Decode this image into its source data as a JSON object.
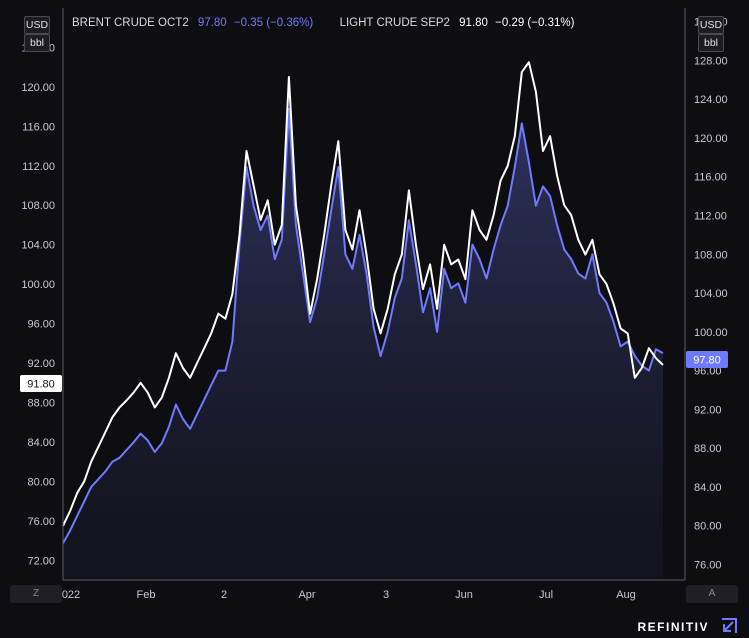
{
  "header": {
    "series1_name": "BRENT CRUDE OCT2",
    "series1_value": "97.80",
    "series1_change": "−0.35 (−0.36%)",
    "series2_name": "LIGHT CRUDE SEP2",
    "series2_value": "91.80",
    "series2_change": "−0.29 (−0.31%)"
  },
  "left_unit": {
    "currency": "USD",
    "unit": "bbl"
  },
  "right_unit": {
    "currency": "USD",
    "unit": "bbl"
  },
  "left_price_tag": "91.80",
  "right_price_tag": "97.80",
  "bottom_left_button": "Z",
  "bottom_right_button": "A",
  "brand": "REFINITIV",
  "colors": {
    "background": "#0e0e12",
    "brent": "#6f7bff",
    "light_crude": "#ffffff",
    "axis_line": "#5a5a66"
  },
  "chart_data": {
    "type": "line",
    "x_ticks": [
      "022",
      "Feb",
      "2",
      "Apr",
      "3",
      "Jun",
      "Jul",
      "Aug"
    ],
    "left_axis": {
      "ticks": [
        "72.00",
        "76.00",
        "80.00",
        "84.00",
        "88.00",
        "92.00",
        "96.00",
        "100.00",
        "104.00",
        "108.00",
        "112.00",
        "116.00",
        "120.00",
        "124.00"
      ],
      "ylim": [
        70.0,
        128.0
      ]
    },
    "right_axis": {
      "ticks": [
        "76.00",
        "80.00",
        "84.00",
        "88.00",
        "92.00",
        "96.00",
        "100.00",
        "104.00",
        "108.00",
        "112.00",
        "116.00",
        "120.00",
        "124.00",
        "128.00",
        "132.00"
      ],
      "ylim": [
        74.4,
        133.4
      ]
    },
    "series": [
      {
        "name": "BRENT CRUDE OCT2",
        "axis": "right",
        "color": "#6f7bff",
        "values": [
          78.2,
          79.5,
          81.0,
          82.5,
          84.0,
          84.8,
          85.6,
          86.6,
          87.0,
          87.8,
          88.6,
          89.5,
          88.8,
          87.6,
          88.5,
          90.2,
          92.5,
          91.0,
          90.0,
          91.5,
          93.0,
          94.5,
          96.0,
          96.0,
          99.0,
          109.0,
          117.0,
          113.0,
          110.5,
          112.0,
          107.5,
          109.5,
          123.0,
          111.0,
          106.0,
          101.0,
          103.5,
          108.0,
          112.5,
          117.0,
          108.0,
          106.5,
          110.0,
          106.0,
          100.5,
          97.5,
          100.0,
          103.5,
          105.5,
          111.5,
          107.0,
          102.0,
          104.5,
          100.0,
          106.5,
          104.5,
          105.0,
          103.0,
          109.0,
          107.5,
          105.5,
          108.5,
          111.0,
          113.0,
          117.0,
          121.5,
          117.5,
          113.0,
          115.0,
          114.0,
          111.0,
          108.5,
          107.5,
          106.0,
          105.5,
          108.0,
          104.0,
          103.0,
          101.0,
          98.5,
          99.0,
          97.5,
          96.5,
          96.0,
          98.2,
          97.8
        ]
      },
      {
        "name": "LIGHT CRUDE SEP2",
        "axis": "left",
        "color": "#ffffff",
        "values": [
          75.5,
          77.0,
          78.8,
          80.0,
          82.0,
          83.5,
          85.0,
          86.5,
          87.5,
          88.2,
          89.0,
          90.0,
          89.0,
          87.5,
          88.5,
          90.5,
          93.0,
          91.5,
          90.5,
          92.0,
          93.5,
          95.0,
          97.0,
          96.5,
          99.0,
          105.0,
          113.5,
          110.0,
          106.5,
          108.5,
          104.0,
          106.0,
          121.0,
          108.0,
          103.0,
          97.0,
          100.5,
          105.0,
          110.0,
          114.5,
          105.5,
          103.5,
          107.5,
          103.0,
          97.5,
          95.0,
          97.5,
          101.0,
          103.0,
          109.5,
          104.0,
          99.5,
          102.0,
          97.5,
          104.0,
          102.0,
          102.5,
          100.5,
          107.5,
          105.5,
          104.5,
          107.0,
          110.5,
          112.0,
          115.0,
          121.5,
          122.5,
          119.5,
          113.5,
          115.0,
          111.0,
          108.0,
          107.0,
          104.5,
          103.0,
          104.5,
          101.0,
          100.0,
          98.0,
          95.5,
          95.0,
          90.5,
          91.5,
          93.5,
          92.5,
          91.8
        ]
      }
    ],
    "legend": "top-left",
    "grid": false
  }
}
